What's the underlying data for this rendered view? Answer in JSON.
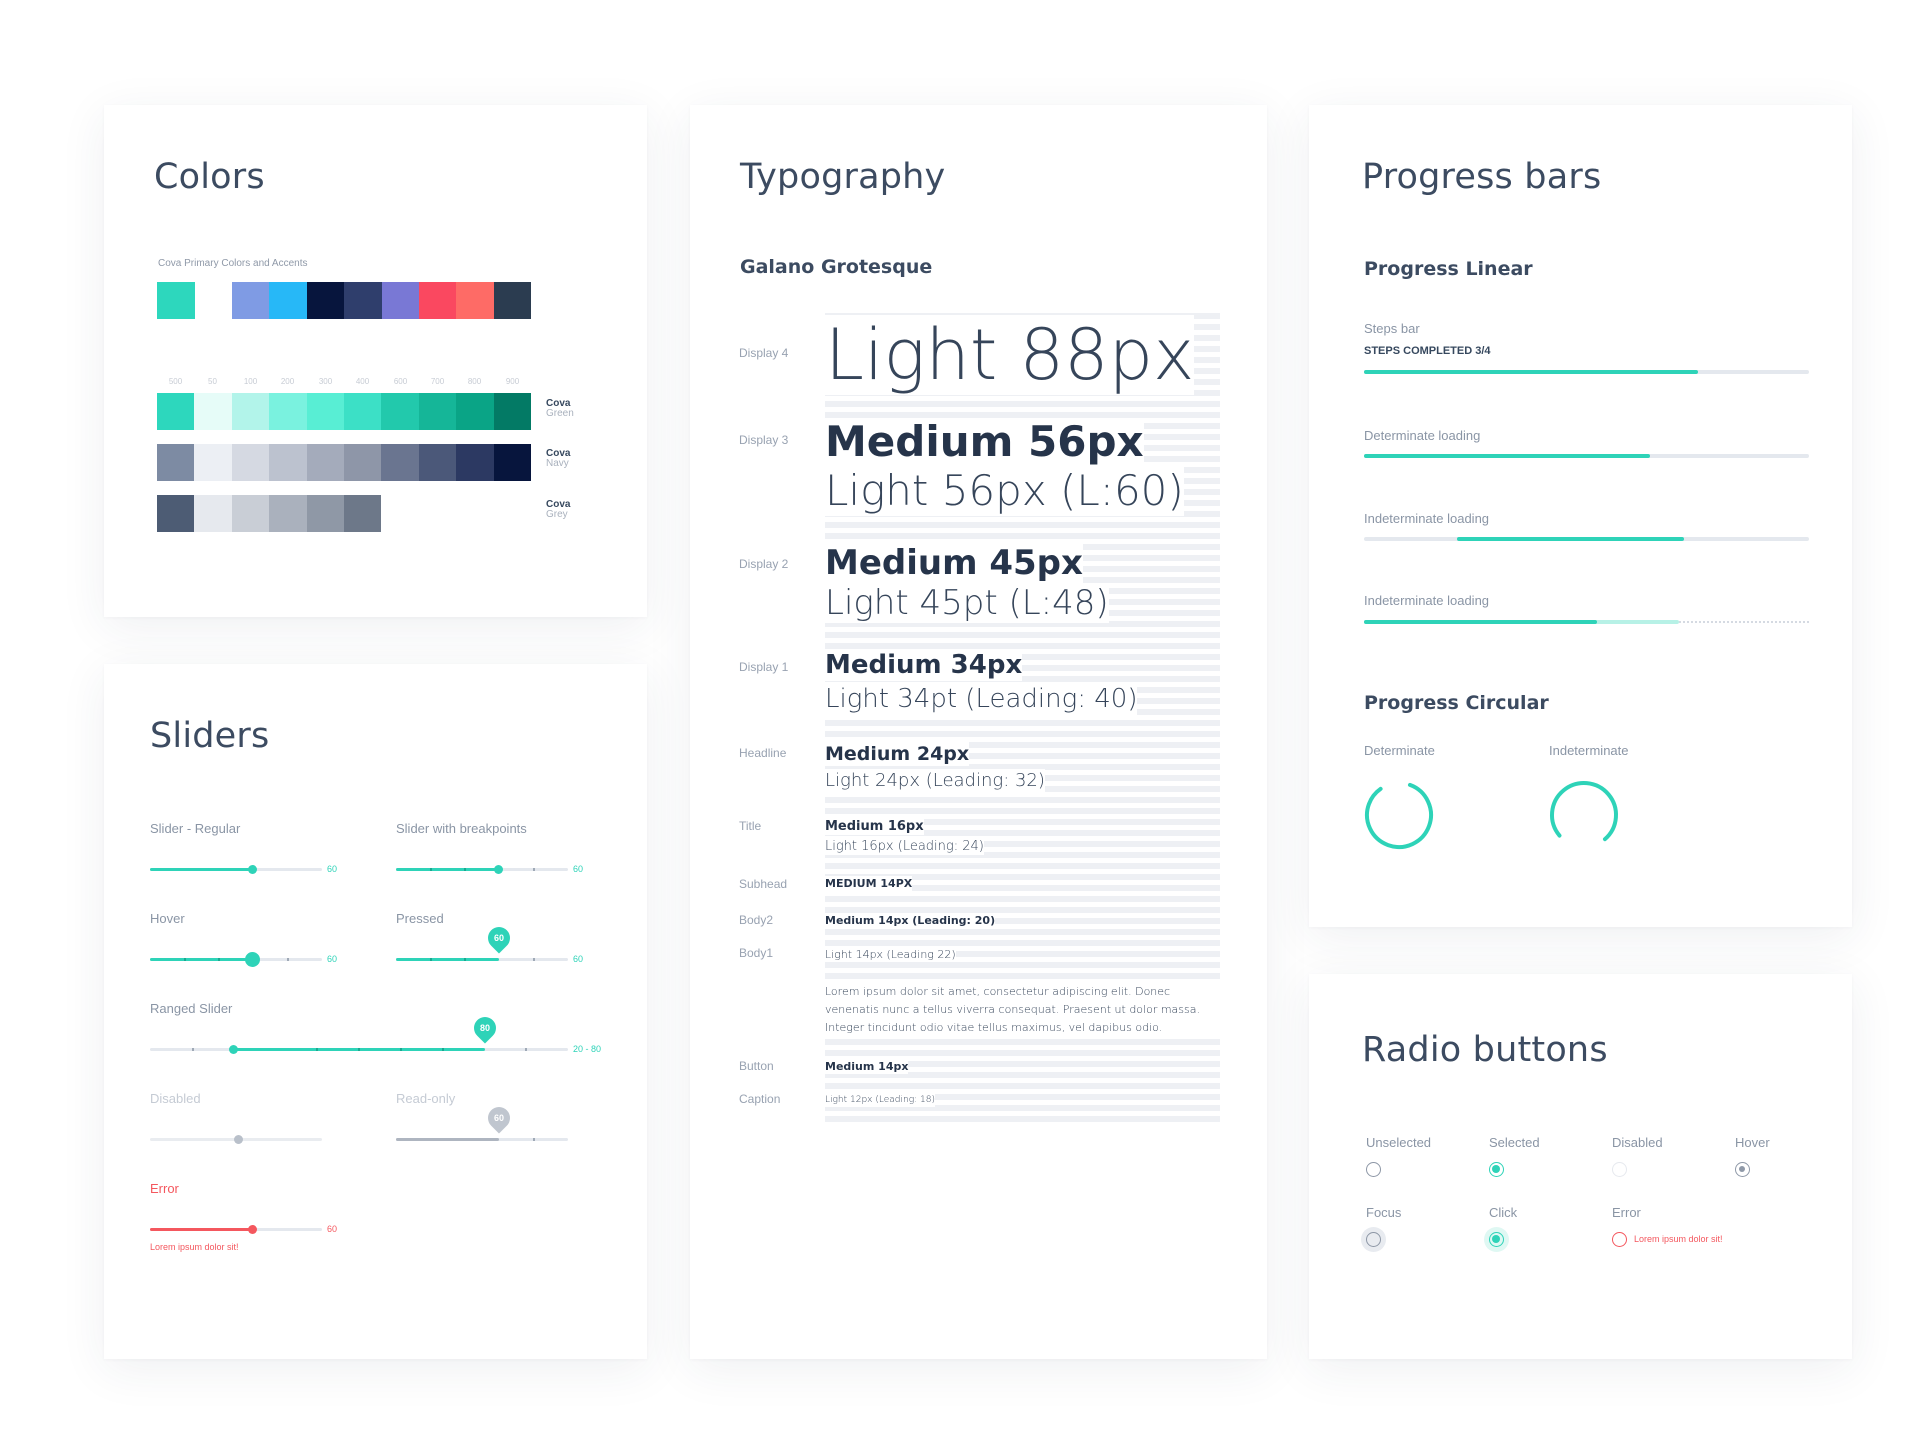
{
  "colors_card": {
    "title": "Colors",
    "subtitle": "Cova Primary Colors and Accents",
    "primary": [
      "#2dd7bd",
      "#7f9be4",
      "#27b8f7",
      "#07153d",
      "#2f3e6c",
      "#7978d5",
      "#fa4860",
      "#fe6b66",
      "#2b3c50"
    ],
    "scale_labels": [
      "500",
      "50",
      "100",
      "200",
      "300",
      "400",
      "600",
      "700",
      "800",
      "900"
    ],
    "green": {
      "name": "Cova",
      "sub": "Green",
      "swatches": [
        "#2dd7bd",
        "#e6fcf8",
        "#b2f4ea",
        "#7af2df",
        "#58eed4",
        "#3ce0c6",
        "#22c9ac",
        "#15b698",
        "#0aa486",
        "#037a65"
      ]
    },
    "navy": {
      "name": "Cova",
      "sub": "Navy",
      "swatches": [
        "#7d8ba3",
        "#eceff4",
        "#d5d9e2",
        "#bcc2cf",
        "#a4abbb",
        "#8e96a8",
        "#6a7590",
        "#4b5879",
        "#2c3962",
        "#07153d"
      ]
    },
    "grey": {
      "name": "Cova",
      "sub": "Grey",
      "swatches": [
        "#4d5c74",
        "#e6e9ee",
        "#c9ced6",
        "#aab1bd",
        "#8f98a6",
        "#6d7889"
      ]
    }
  },
  "typography_card": {
    "title": "Typography",
    "font_name": "Galano Grotesque",
    "rows": [
      {
        "label": "Display 4",
        "medium": "",
        "light": "Light 88px"
      },
      {
        "label": "Display 3",
        "medium": "Medium 56px",
        "light": "Light 56px (L:60)"
      },
      {
        "label": "Display 2",
        "medium": "Medium 45px",
        "light": "Light 45pt (L:48)"
      },
      {
        "label": "Display 1",
        "medium": "Medium 34px",
        "light": "Light 34pt (Leading: 40)"
      },
      {
        "label": "Headline",
        "medium": "Medium 24px",
        "light": "Light 24px (Leading: 32)"
      },
      {
        "label": "Title",
        "medium": "Medium 16px",
        "light": "Light 16px (Leading: 24)"
      },
      {
        "label": "Subhead",
        "medium": "MEDIUM 14PX",
        "light": ""
      },
      {
        "label": "Body2",
        "medium": "Medium 14px (Leading: 20)",
        "light": ""
      },
      {
        "label": "Body1",
        "medium": "",
        "light": "Light 14px (Leading 22)"
      },
      {
        "label": "",
        "medium": "",
        "light": "Lorem ipsum dolor sit amet, consectetur adipiscing elit. Donec venenatis nunc a tellus viverra consequat. Praesent ut dolor massa. Integer tincidunt odio vitae tellus maximus, vel dapibus odio."
      },
      {
        "label": "Button",
        "medium": "Medium 14px",
        "light": ""
      },
      {
        "label": "Caption",
        "medium": "",
        "light": "Light 12px (Leading: 18)"
      }
    ]
  },
  "progress_card": {
    "title": "Progress bars",
    "linear_heading": "Progress Linear",
    "steps_label": "Steps bar",
    "steps_status": "STEPS COMPLETED 3/4",
    "steps_progress": 0.75,
    "determinate_label": "Determinate loading",
    "determinate_progress": 0.64,
    "indeterminate_label": "Indeterminate loading",
    "buffer_label": "Indeterminate loading",
    "circular_heading": "Progress Circular",
    "circ_determinate": "Determinate",
    "circ_indeterminate": "Indeterminate",
    "accent": "#2ed3b8"
  },
  "sliders_card": {
    "title": "Sliders",
    "regular": {
      "label": "Slider - Regular",
      "value": "60"
    },
    "breakpoints": {
      "label": "Slider with breakpoints",
      "value": "60"
    },
    "hover": {
      "label": "Hover",
      "value": "60"
    },
    "pressed": {
      "label": "Pressed",
      "value": "60",
      "pin": "60"
    },
    "ranged": {
      "label": "Ranged Slider",
      "value": "20 - 80",
      "pin": "80"
    },
    "disabled": {
      "label": "Disabled"
    },
    "readonly": {
      "label": "Read-only",
      "pin": "60"
    },
    "error": {
      "label": "Error",
      "value": "60",
      "helper": "Lorem ipsum dolor sit!"
    },
    "accent": "#2ed3b8",
    "error_color": "#f4575e"
  },
  "radio_card": {
    "title": "Radio buttons",
    "states": [
      {
        "label": "Unselected"
      },
      {
        "label": "Selected"
      },
      {
        "label": "Disabled"
      },
      {
        "label": "Hover"
      },
      {
        "label": "Focus"
      },
      {
        "label": "Click"
      },
      {
        "label": "Error",
        "helper": "Lorem ipsum dolor sit!"
      }
    ]
  }
}
